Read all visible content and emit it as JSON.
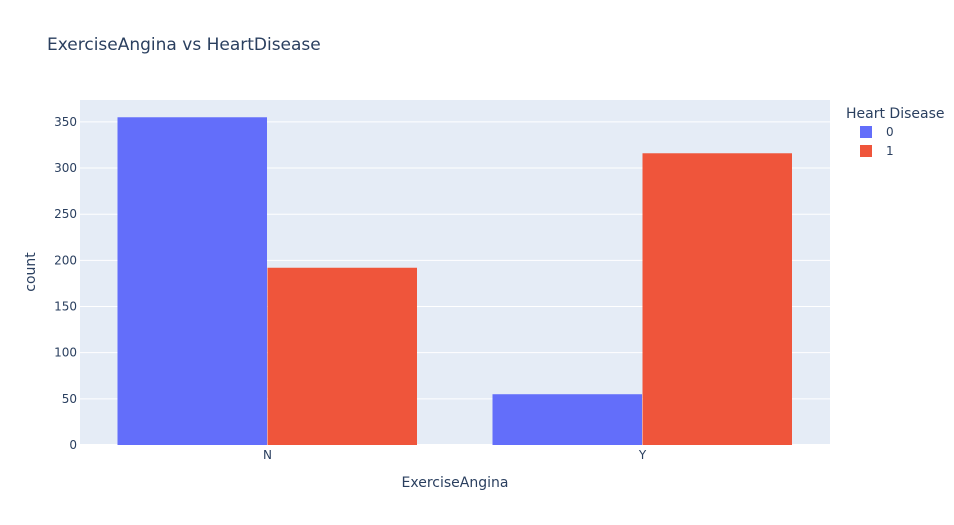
{
  "chart_data": {
    "type": "bar",
    "title": "ExerciseAngina vs HeartDisease",
    "xlabel": "ExerciseAngina",
    "ylabel": "count",
    "categories": [
      "N",
      "Y"
    ],
    "series": [
      {
        "name": "0",
        "values": [
          355,
          55
        ],
        "color": "#636efa"
      },
      {
        "name": "1",
        "values": [
          192,
          316
        ],
        "color": "#ef553b"
      }
    ],
    "ylim": [
      0,
      373.7
    ],
    "yticks": [
      0,
      50,
      100,
      150,
      200,
      250,
      300,
      350
    ],
    "legend_title": "Heart Disease",
    "legend_position": "top-right",
    "grid": true,
    "plot_background": "#e5ecf6"
  }
}
